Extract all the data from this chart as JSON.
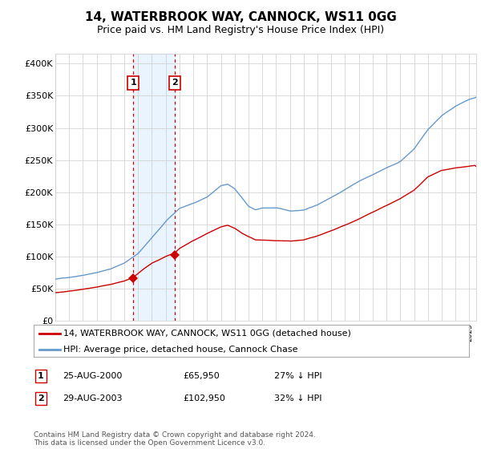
{
  "title": "14, WATERBROOK WAY, CANNOCK, WS11 0GG",
  "subtitle": "Price paid vs. HM Land Registry's House Price Index (HPI)",
  "ylabel_ticks": [
    "£0",
    "£50K",
    "£100K",
    "£150K",
    "£200K",
    "£250K",
    "£300K",
    "£350K",
    "£400K"
  ],
  "ytick_values": [
    0,
    50000,
    100000,
    150000,
    200000,
    250000,
    300000,
    350000,
    400000
  ],
  "ylim": [
    0,
    415000
  ],
  "xlim_start": 1995.0,
  "xlim_end": 2025.5,
  "sale1_date": 2000.646,
  "sale1_price": 65950,
  "sale2_date": 2003.659,
  "sale2_price": 102950,
  "sale1_label": "1",
  "sale2_label": "2",
  "legend_line1": "14, WATERBROOK WAY, CANNOCK, WS11 0GG (detached house)",
  "legend_line2": "HPI: Average price, detached house, Cannock Chase",
  "table_row1": [
    "1",
    "25-AUG-2000",
    "£65,950",
    "27% ↓ HPI"
  ],
  "table_row2": [
    "2",
    "29-AUG-2003",
    "£102,950",
    "32% ↓ HPI"
  ],
  "footer": "Contains HM Land Registry data © Crown copyright and database right 2024.\nThis data is licensed under the Open Government Licence v3.0.",
  "red_color": "#cc0000",
  "blue_color": "#6699cc",
  "shade_color": "#ddeeff",
  "grid_color": "#cccccc",
  "bg_color": "#ffffff",
  "hpi_keypoints": [
    [
      1995.0,
      65000
    ],
    [
      1996.0,
      68000
    ],
    [
      1997.0,
      72000
    ],
    [
      1998.0,
      76000
    ],
    [
      1999.0,
      82000
    ],
    [
      2000.0,
      91000
    ],
    [
      2001.0,
      106000
    ],
    [
      2002.0,
      130000
    ],
    [
      2003.0,
      155000
    ],
    [
      2004.0,
      175000
    ],
    [
      2005.0,
      183000
    ],
    [
      2006.0,
      193000
    ],
    [
      2007.0,
      210000
    ],
    [
      2007.5,
      212000
    ],
    [
      2008.0,
      205000
    ],
    [
      2008.5,
      192000
    ],
    [
      2009.0,
      178000
    ],
    [
      2009.5,
      172000
    ],
    [
      2010.0,
      175000
    ],
    [
      2011.0,
      175000
    ],
    [
      2012.0,
      170000
    ],
    [
      2013.0,
      172000
    ],
    [
      2014.0,
      180000
    ],
    [
      2015.0,
      192000
    ],
    [
      2016.0,
      205000
    ],
    [
      2017.0,
      218000
    ],
    [
      2018.0,
      228000
    ],
    [
      2019.0,
      238000
    ],
    [
      2020.0,
      248000
    ],
    [
      2021.0,
      268000
    ],
    [
      2022.0,
      298000
    ],
    [
      2023.0,
      320000
    ],
    [
      2024.0,
      335000
    ],
    [
      2025.0,
      345000
    ],
    [
      2025.5,
      348000
    ]
  ],
  "red_keypoints": [
    [
      1995.0,
      44000
    ],
    [
      1996.0,
      46000
    ],
    [
      1997.0,
      49000
    ],
    [
      1998.0,
      52000
    ],
    [
      1999.0,
      55000
    ],
    [
      2000.0,
      60000
    ],
    [
      2000.646,
      65950
    ],
    [
      2001.0,
      72000
    ],
    [
      2002.0,
      88000
    ],
    [
      2003.0,
      98000
    ],
    [
      2003.659,
      102950
    ],
    [
      2004.0,
      110000
    ],
    [
      2005.0,
      122000
    ],
    [
      2006.0,
      133000
    ],
    [
      2007.0,
      143000
    ],
    [
      2007.5,
      145000
    ],
    [
      2008.0,
      140000
    ],
    [
      2008.5,
      133000
    ],
    [
      2009.0,
      127000
    ],
    [
      2009.5,
      122000
    ],
    [
      2010.0,
      122000
    ],
    [
      2011.0,
      121000
    ],
    [
      2012.0,
      120000
    ],
    [
      2013.0,
      122000
    ],
    [
      2014.0,
      128000
    ],
    [
      2015.0,
      136000
    ],
    [
      2016.0,
      145000
    ],
    [
      2017.0,
      155000
    ],
    [
      2018.0,
      165000
    ],
    [
      2019.0,
      175000
    ],
    [
      2020.0,
      185000
    ],
    [
      2021.0,
      198000
    ],
    [
      2022.0,
      218000
    ],
    [
      2023.0,
      228000
    ],
    [
      2024.0,
      232000
    ],
    [
      2025.0,
      235000
    ],
    [
      2025.5,
      237000
    ]
  ]
}
